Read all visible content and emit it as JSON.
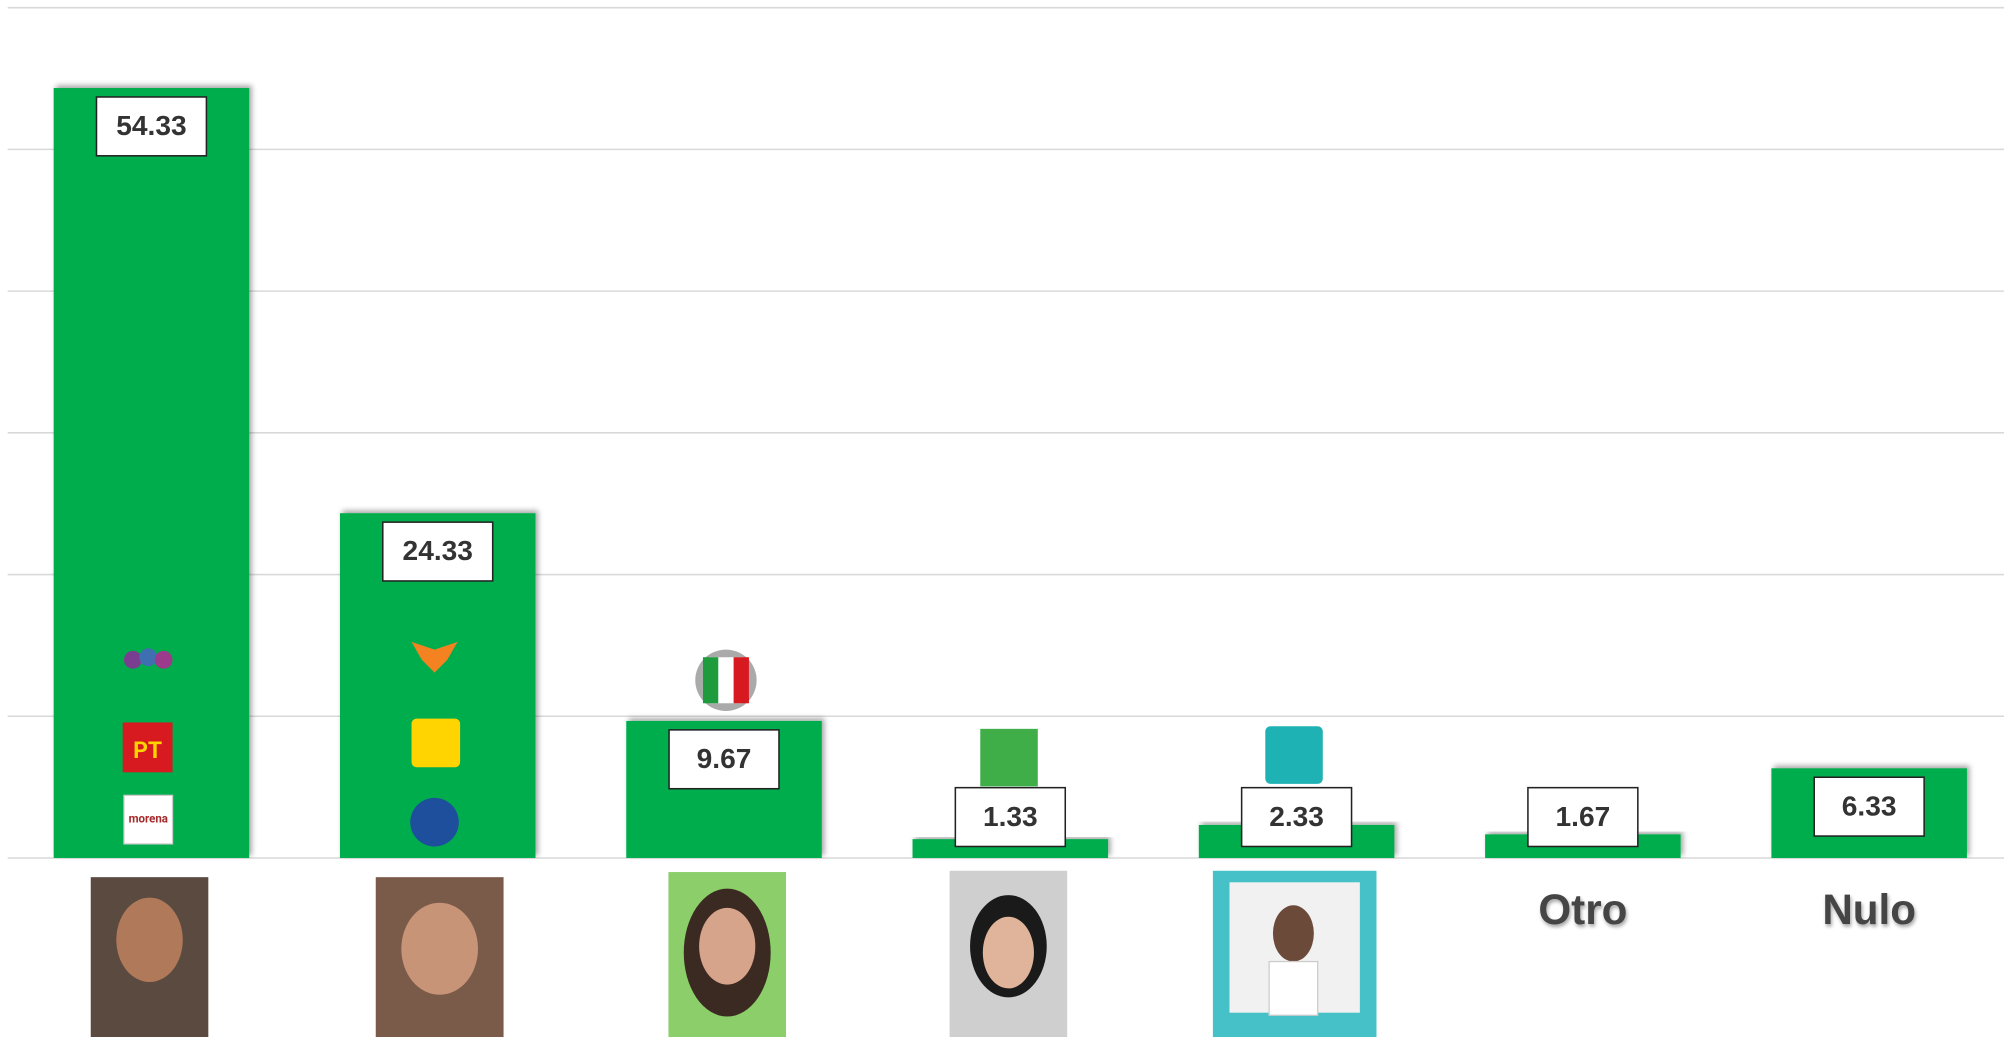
{
  "chart_data": {
    "type": "bar",
    "categories": [
      null,
      null,
      null,
      null,
      null,
      "Otro",
      "Nulo"
    ],
    "values": [
      54.33,
      24.33,
      9.67,
      1.33,
      2.33,
      1.67,
      6.33
    ],
    "color": "#00ad4e",
    "ylim": [
      0,
      60
    ],
    "yticks": [
      0,
      10,
      20,
      30,
      40,
      50,
      60
    ],
    "grid": true
  }
}
